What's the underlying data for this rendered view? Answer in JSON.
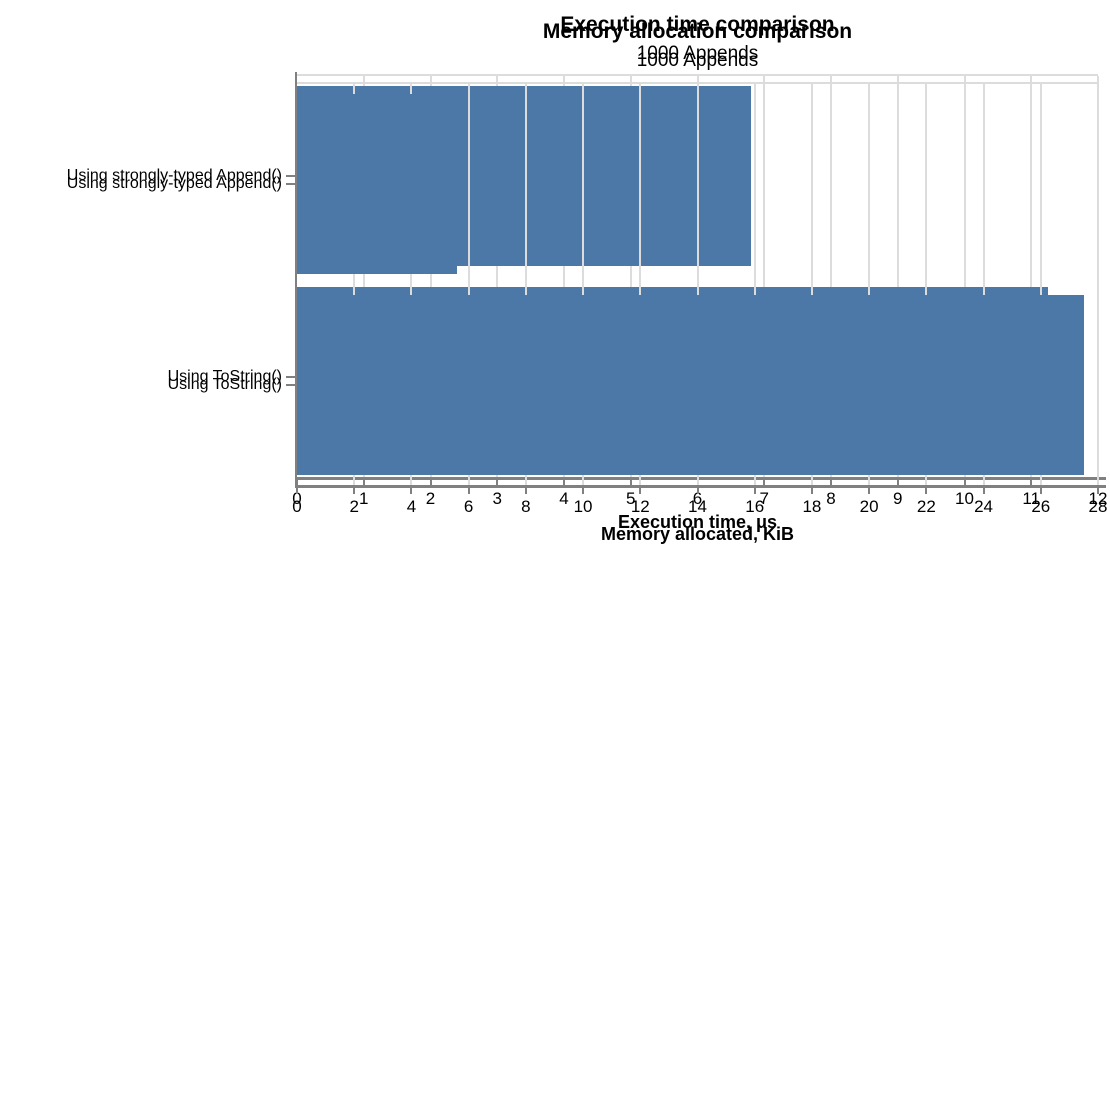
{
  "page": {
    "background": "#ffffff",
    "text_color": "#000000"
  },
  "style": {
    "bar_color": "#4C78A8",
    "grid_color": "#dcdcdc",
    "axis_color": "#808080"
  },
  "chart_data": [
    {
      "type": "bar",
      "orientation": "horizontal",
      "title": "Execution time comparison",
      "subtitle": "1000 Appends",
      "xlabel": "Execution time, μs",
      "categories": [
        "Using strongly-typed Append()",
        "Using ToString()"
      ],
      "values": [
        6.8,
        11.25
      ],
      "xlim": [
        0,
        12
      ],
      "xticks": [
        0,
        1,
        2,
        3,
        4,
        5,
        6,
        7,
        8,
        9,
        10,
        11,
        12
      ],
      "grid": true,
      "legend": false,
      "bar_color": "#4C78A8"
    },
    {
      "type": "bar",
      "orientation": "horizontal",
      "title": "Memory allocation comparison",
      "subtitle": "1000 Appends",
      "xlabel": "Memory allocated, KiB",
      "categories": [
        "Using strongly-typed Append()",
        "Using ToString()"
      ],
      "values": [
        5.6,
        27.5
      ],
      "xlim": [
        0,
        28
      ],
      "xticks": [
        0,
        2,
        4,
        6,
        8,
        10,
        12,
        14,
        16,
        18,
        20,
        22,
        24,
        26,
        28
      ],
      "grid": true,
      "legend": false,
      "bar_color": "#4C78A8"
    }
  ]
}
